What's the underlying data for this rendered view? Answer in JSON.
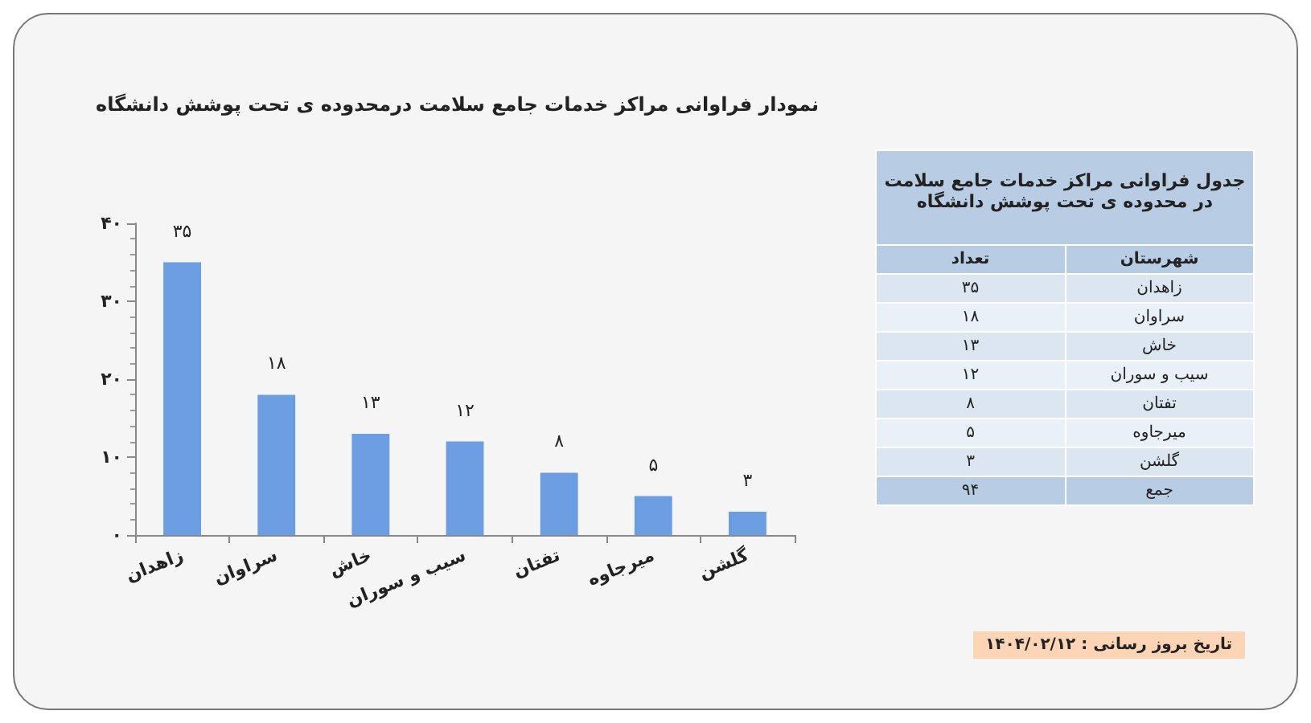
{
  "chart_data": [
    {
      "type": "bar",
      "title": "نمودار فراوانی مراکز خدمات جامع سلامت درمحدوده ی تحت پوشش دانشگاه",
      "categories": [
        "زاهدان",
        "سراوان",
        "خاش",
        "سیب و سوران",
        "تفتان",
        "میرجاوه",
        "گلشن"
      ],
      "values": [
        35,
        18,
        13,
        12,
        8,
        5,
        3
      ],
      "color": "#6b9de0",
      "value_labels": [
        "۳۵",
        "۱۸",
        "۱۳",
        "۱۲",
        "۸",
        "۵",
        "۳"
      ],
      "ylim": [
        0,
        40
      ],
      "yticks": [
        {
          "value": 0,
          "label": "۰"
        },
        {
          "value": 10,
          "label": "۱۰"
        },
        {
          "value": 20,
          "label": "۲۰"
        },
        {
          "value": 30,
          "label": "۳۰"
        },
        {
          "value": 40,
          "label": "۴۰"
        }
      ],
      "grid": false,
      "annotations": [
        "تاریخ بروز رسانی : ۱۴۰۴/۰۲/۱۲"
      ]
    },
    {
      "type": "other",
      "title": "جدول فراوانی مراکز خدمات جامع سلامت در محدوده ی تحت پوشش دانشگاه",
      "annotations": [
        "شهرستان",
        "تعداد",
        "جمع"
      ],
      "categories": [
        "زاهدان",
        "سراوان",
        "خاش",
        "سیب و سوران",
        "تفتان",
        "میرجاوه",
        "گلشن"
      ],
      "value_labels": [
        "۳۵",
        "۱۸",
        "۱۳",
        "۱۲",
        "۸",
        "۵",
        "۳"
      ],
      "totals": [
        "۹۴"
      ]
    }
  ]
}
